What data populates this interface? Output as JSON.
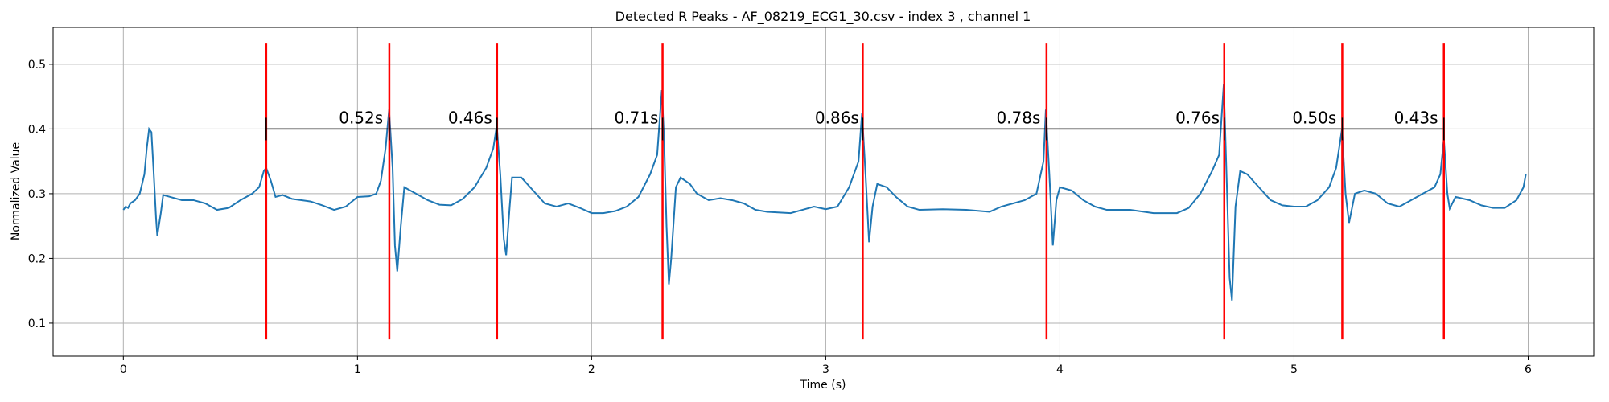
{
  "chart_data": {
    "type": "line",
    "title": "Detected R Peaks - AF_08219_ECG1_30.csv - index 3 , channel 1",
    "xlabel": "Time (s)",
    "ylabel": "Normalized Value",
    "color": "#1f77b4",
    "x": [
      0,
      0.01,
      0.02,
      0.03,
      0.05,
      0.07,
      0.09,
      0.1,
      0.11,
      0.12,
      0.13,
      0.14,
      0.145,
      0.16,
      0.17,
      0.2,
      0.25,
      0.3,
      0.35,
      0.4,
      0.45,
      0.5,
      0.55,
      0.58,
      0.6,
      0.61,
      0.63,
      0.65,
      0.68,
      0.72,
      0.8,
      0.85,
      0.9,
      0.95,
      1.0,
      1.05,
      1.08,
      1.1,
      1.12,
      1.135,
      1.15,
      1.16,
      1.17,
      1.185,
      1.2,
      1.25,
      1.3,
      1.35,
      1.4,
      1.45,
      1.5,
      1.55,
      1.58,
      1.595,
      1.61,
      1.625,
      1.635,
      1.65,
      1.66,
      1.7,
      1.75,
      1.8,
      1.85,
      1.9,
      1.95,
      2.0,
      2.05,
      2.1,
      2.15,
      2.2,
      2.25,
      2.28,
      2.3,
      2.31,
      2.32,
      2.33,
      2.34,
      2.36,
      2.38,
      2.42,
      2.45,
      2.5,
      2.55,
      2.6,
      2.65,
      2.7,
      2.75,
      2.85,
      2.9,
      2.95,
      3.0,
      3.05,
      3.1,
      3.14,
      3.155,
      3.17,
      3.185,
      3.2,
      3.22,
      3.26,
      3.3,
      3.35,
      3.4,
      3.5,
      3.6,
      3.7,
      3.75,
      3.8,
      3.85,
      3.9,
      3.93,
      3.94,
      3.955,
      3.97,
      3.985,
      4.0,
      4.05,
      4.1,
      4.15,
      4.2,
      4.3,
      4.4,
      4.5,
      4.55,
      4.6,
      4.65,
      4.68,
      4.7,
      4.71,
      4.725,
      4.735,
      4.75,
      4.77,
      4.8,
      4.85,
      4.9,
      4.95,
      5.0,
      5.05,
      5.1,
      5.15,
      5.18,
      5.205,
      5.22,
      5.235,
      5.26,
      5.3,
      5.35,
      5.4,
      5.45,
      5.5,
      5.55,
      5.6,
      5.625,
      5.64,
      5.655,
      5.665,
      5.69,
      5.75,
      5.8,
      5.85,
      5.9,
      5.95,
      5.98,
      5.99
    ],
    "values": [
      0.275,
      0.28,
      0.278,
      0.285,
      0.29,
      0.3,
      0.33,
      0.37,
      0.4,
      0.395,
      0.33,
      0.26,
      0.235,
      0.27,
      0.298,
      0.295,
      0.29,
      0.29,
      0.285,
      0.275,
      0.278,
      0.29,
      0.3,
      0.31,
      0.335,
      0.34,
      0.32,
      0.295,
      0.298,
      0.292,
      0.288,
      0.282,
      0.275,
      0.28,
      0.295,
      0.296,
      0.3,
      0.32,
      0.37,
      0.43,
      0.34,
      0.22,
      0.18,
      0.25,
      0.31,
      0.3,
      0.29,
      0.283,
      0.282,
      0.292,
      0.31,
      0.34,
      0.37,
      0.405,
      0.33,
      0.23,
      0.205,
      0.28,
      0.325,
      0.325,
      0.305,
      0.285,
      0.28,
      0.285,
      0.278,
      0.27,
      0.27,
      0.273,
      0.28,
      0.295,
      0.33,
      0.36,
      0.46,
      0.38,
      0.25,
      0.16,
      0.2,
      0.31,
      0.325,
      0.315,
      0.3,
      0.29,
      0.293,
      0.29,
      0.285,
      0.275,
      0.272,
      0.27,
      0.275,
      0.28,
      0.276,
      0.28,
      0.31,
      0.35,
      0.425,
      0.33,
      0.225,
      0.28,
      0.315,
      0.31,
      0.295,
      0.28,
      0.275,
      0.276,
      0.275,
      0.272,
      0.28,
      0.285,
      0.29,
      0.3,
      0.35,
      0.43,
      0.33,
      0.22,
      0.29,
      0.31,
      0.305,
      0.29,
      0.28,
      0.275,
      0.275,
      0.27,
      0.27,
      0.278,
      0.3,
      0.335,
      0.36,
      0.47,
      0.35,
      0.17,
      0.135,
      0.28,
      0.335,
      0.33,
      0.31,
      0.29,
      0.282,
      0.28,
      0.28,
      0.29,
      0.31,
      0.34,
      0.4,
      0.3,
      0.255,
      0.3,
      0.305,
      0.3,
      0.285,
      0.28,
      0.29,
      0.3,
      0.31,
      0.33,
      0.385,
      0.3,
      0.277,
      0.295,
      0.29,
      0.282,
      0.278,
      0.278,
      0.29,
      0.31,
      0.33
    ],
    "peaks": [
      0.61,
      1.136,
      1.596,
      2.303,
      3.158,
      3.943,
      4.702,
      5.206,
      5.64
    ],
    "peak_color": "#ff0000",
    "peak_line_range": [
      0.075,
      0.532
    ],
    "bracket_y": 0.4,
    "intervals": {
      "values": [
        0.52,
        0.46,
        0.71,
        0.86,
        0.78,
        0.76,
        0.5,
        0.43
      ],
      "value_labels": [
        "0.52s",
        "0.46s",
        "0.71s",
        "0.86s",
        "0.78s",
        "0.76s",
        "0.50s",
        "0.43s"
      ]
    },
    "xlim": [
      -0.3,
      6.28
    ],
    "ylim": [
      0.049,
      0.557
    ],
    "xticks": [
      0,
      1,
      2,
      3,
      4,
      5,
      6
    ],
    "yticks": [
      0.1,
      0.2,
      0.3,
      0.4,
      0.5
    ],
    "grid": true
  }
}
